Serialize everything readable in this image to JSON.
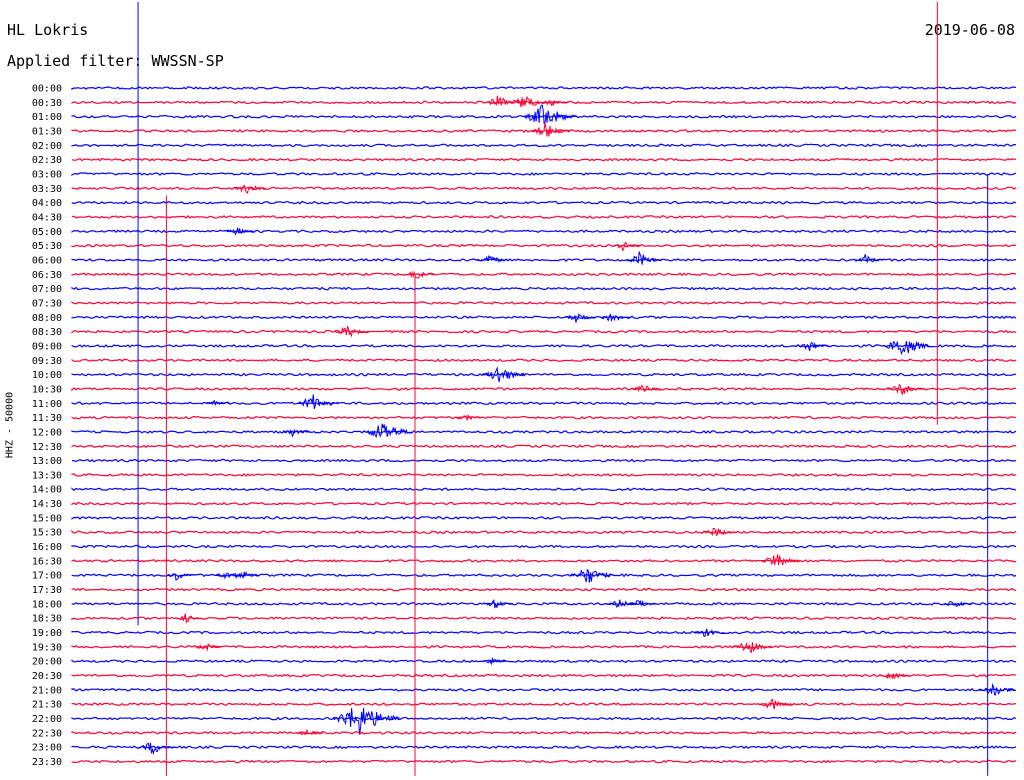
{
  "header": {
    "station": "HL Lokris",
    "filter": "Applied filter: WWSSN-SP",
    "date": "2019-06-08"
  },
  "colors": {
    "odd_trace": "#0000ff",
    "even_trace": "#ff0033",
    "text": "#000000"
  },
  "chart_data": {
    "type": "line",
    "ylabel": "HHZ - 50000",
    "rows": [
      "00:00",
      "00:30",
      "01:00",
      "01:30",
      "02:00",
      "02:30",
      "03:00",
      "03:30",
      "04:00",
      "04:30",
      "05:00",
      "05:30",
      "06:00",
      "06:30",
      "07:00",
      "07:30",
      "08:00",
      "08:30",
      "09:00",
      "09:30",
      "10:00",
      "10:30",
      "11:00",
      "11:30",
      "12:00",
      "12:30",
      "13:00",
      "13:30",
      "14:00",
      "14:30",
      "15:00",
      "15:30",
      "16:00",
      "16:30",
      "17:00",
      "17:30",
      "18:00",
      "18:30",
      "19:00",
      "19:30",
      "20:00",
      "20:30",
      "21:00",
      "21:30",
      "22:00",
      "22:30",
      "23:00",
      "23:30"
    ],
    "events": [
      {
        "row": 1,
        "minute": 13.5,
        "amp": 8
      },
      {
        "row": 1,
        "minute": 14.3,
        "amp": 10
      },
      {
        "row": 1,
        "minute": 15.2,
        "amp": 5
      },
      {
        "row": 2,
        "minute": 14.9,
        "amp": 16
      },
      {
        "row": 3,
        "minute": 15.0,
        "amp": 10
      },
      {
        "row": 7,
        "minute": 5.5,
        "amp": 7
      },
      {
        "row": 10,
        "minute": 5.2,
        "amp": 5
      },
      {
        "row": 12,
        "minute": 13.2,
        "amp": 7
      },
      {
        "row": 12,
        "minute": 18.0,
        "amp": 9
      },
      {
        "row": 12,
        "minute": 25.2,
        "amp": 6
      },
      {
        "row": 11,
        "minute": 17.5,
        "amp": 5
      },
      {
        "row": 13,
        "minute": 10.9,
        "amp": 6
      },
      {
        "row": 16,
        "minute": 16.0,
        "amp": 7
      },
      {
        "row": 16,
        "minute": 17.1,
        "amp": 7
      },
      {
        "row": 17,
        "minute": 8.7,
        "amp": 8
      },
      {
        "row": 18,
        "minute": 23.4,
        "amp": 7
      },
      {
        "row": 18,
        "minute": 26.3,
        "amp": 14
      },
      {
        "row": 20,
        "minute": 13.5,
        "amp": 12
      },
      {
        "row": 21,
        "minute": 18.1,
        "amp": 6
      },
      {
        "row": 21,
        "minute": 26.3,
        "amp": 9
      },
      {
        "row": 22,
        "minute": 4.5,
        "amp": 4
      },
      {
        "row": 22,
        "minute": 7.6,
        "amp": 11
      },
      {
        "row": 23,
        "minute": 12.5,
        "amp": 4
      },
      {
        "row": 24,
        "minute": 7.0,
        "amp": 5
      },
      {
        "row": 24,
        "minute": 9.8,
        "amp": 14
      },
      {
        "row": 31,
        "minute": 20.4,
        "amp": 7
      },
      {
        "row": 33,
        "minute": 22.3,
        "amp": 10
      },
      {
        "row": 34,
        "minute": 3.3,
        "amp": 6
      },
      {
        "row": 34,
        "minute": 4.8,
        "amp": 5
      },
      {
        "row": 34,
        "minute": 5.3,
        "amp": 7
      },
      {
        "row": 34,
        "minute": 16.3,
        "amp": 12
      },
      {
        "row": 36,
        "minute": 13.4,
        "amp": 6
      },
      {
        "row": 36,
        "minute": 17.3,
        "amp": 7
      },
      {
        "row": 36,
        "minute": 18.0,
        "amp": 6
      },
      {
        "row": 36,
        "minute": 28.0,
        "amp": 6
      },
      {
        "row": 37,
        "minute": 3.6,
        "amp": 5
      },
      {
        "row": 38,
        "minute": 20.1,
        "amp": 7
      },
      {
        "row": 39,
        "minute": 4.2,
        "amp": 5
      },
      {
        "row": 39,
        "minute": 21.4,
        "amp": 10
      },
      {
        "row": 40,
        "minute": 13.3,
        "amp": 4
      },
      {
        "row": 41,
        "minute": 26.0,
        "amp": 6
      },
      {
        "row": 42,
        "minute": 29.2,
        "amp": 9
      },
      {
        "row": 43,
        "minute": 22.2,
        "amp": 8
      },
      {
        "row": 44,
        "minute": 9.0,
        "amp": 22
      },
      {
        "row": 45,
        "minute": 7.4,
        "amp": 5
      },
      {
        "row": 46,
        "minute": 2.5,
        "amp": 9
      }
    ]
  }
}
